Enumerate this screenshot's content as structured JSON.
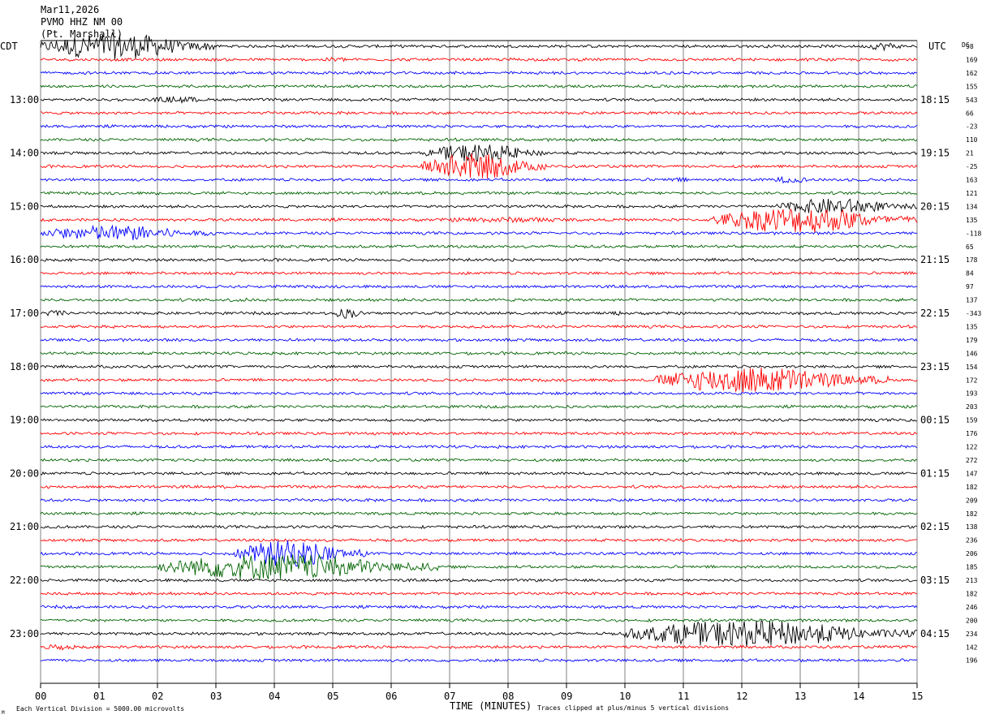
{
  "header": {
    "date": "Mar11,2026",
    "station": "PVMO HHZ NM 00",
    "location": "(Pt. Marshall)"
  },
  "labels": {
    "left_tz": "CDT",
    "right_tz": "UTC",
    "dc_label": "DC",
    "x_axis_title": "TIME (MINUTES)",
    "scale_note": "Each Vertical Division = 5000.00 microvolts",
    "clip_note": "Traces clipped at plus/minus 5 vertical divisions",
    "corner_mark": "M"
  },
  "colors": {
    "cycle": [
      "#000000",
      "#ff0000",
      "#0000ff",
      "#006400"
    ],
    "grid": "#808080",
    "background": "#ffffff"
  },
  "chart_data": {
    "type": "line",
    "subtype": "helicorder",
    "x_label": "TIME (MINUTES)",
    "x_range": [
      0,
      15
    ],
    "x_ticks": [
      "00",
      "01",
      "02",
      "03",
      "04",
      "05",
      "06",
      "07",
      "08",
      "09",
      "10",
      "11",
      "12",
      "13",
      "14",
      "15"
    ],
    "trace_minutes": 15,
    "color_cycle": [
      "black",
      "red",
      "blue",
      "green"
    ],
    "left_hour_labels": [
      "13:00",
      "14:00",
      "15:00",
      "16:00",
      "17:00",
      "18:00",
      "19:00",
      "20:00",
      "21:00",
      "22:00",
      "23:00"
    ],
    "right_hour_labels": [
      "18:15",
      "19:15",
      "20:15",
      "21:15",
      "22:15",
      "23:15",
      "00:15",
      "01:15",
      "02:15",
      "03:15",
      "04:15"
    ],
    "dc_offsets": [
      98,
      169,
      162,
      155,
      543,
      66,
      -23,
      110,
      21,
      -25,
      163,
      121,
      134,
      135,
      -118,
      65,
      178,
      84,
      97,
      137,
      -343,
      135,
      179,
      146,
      154,
      172,
      193,
      203,
      159,
      176,
      122,
      272,
      147,
      182,
      209,
      182,
      138,
      236,
      206,
      185,
      213,
      182,
      246,
      200,
      234,
      142,
      196
    ],
    "trace_count": 47,
    "events": [
      {
        "trace": 0,
        "start_min": 0.0,
        "end_min": 3.0,
        "amplitude_div": 5.0
      },
      {
        "trace": 0,
        "start_min": 14.1,
        "end_min": 14.9,
        "amplitude_div": 1.5
      },
      {
        "trace": 1,
        "start_min": 4.8,
        "end_min": 5.4,
        "amplitude_div": 1.0
      },
      {
        "trace": 1,
        "start_min": 7.8,
        "end_min": 8.5,
        "amplitude_div": 0.7
      },
      {
        "trace": 4,
        "start_min": 1.8,
        "end_min": 3.1,
        "amplitude_div": 1.2
      },
      {
        "trace": 8,
        "start_min": 6.6,
        "end_min": 8.7,
        "amplitude_div": 3.5
      },
      {
        "trace": 9,
        "start_min": 6.5,
        "end_min": 8.7,
        "amplitude_div": 5.0
      },
      {
        "trace": 10,
        "start_min": 10.6,
        "end_min": 11.4,
        "amplitude_div": 0.8
      },
      {
        "trace": 10,
        "start_min": 12.4,
        "end_min": 13.4,
        "amplitude_div": 1.2
      },
      {
        "trace": 12,
        "start_min": 12.6,
        "end_min": 15.0,
        "amplitude_div": 3.0
      },
      {
        "trace": 13,
        "start_min": 6.5,
        "end_min": 10.0,
        "amplitude_div": 1.0
      },
      {
        "trace": 13,
        "start_min": 11.5,
        "end_min": 15.0,
        "amplitude_div": 5.0
      },
      {
        "trace": 14,
        "start_min": 0.0,
        "end_min": 3.0,
        "amplitude_div": 3.0
      },
      {
        "trace": 19,
        "start_min": 3.1,
        "end_min": 3.8,
        "amplitude_div": 0.8
      },
      {
        "trace": 20,
        "start_min": 0.0,
        "end_min": 0.6,
        "amplitude_div": 1.2
      },
      {
        "trace": 20,
        "start_min": 5.0,
        "end_min": 5.6,
        "amplitude_div": 2.0
      },
      {
        "trace": 20,
        "start_min": 9.7,
        "end_min": 10.1,
        "amplitude_div": 0.8
      },
      {
        "trace": 25,
        "start_min": 10.5,
        "end_min": 14.5,
        "amplitude_div": 5.0
      },
      {
        "trace": 38,
        "start_min": 3.3,
        "end_min": 5.6,
        "amplitude_div": 5.0
      },
      {
        "trace": 39,
        "start_min": 2.0,
        "end_min": 6.8,
        "amplitude_div": 5.0
      },
      {
        "trace": 44,
        "start_min": 10.0,
        "end_min": 15.0,
        "amplitude_div": 5.0
      },
      {
        "trace": 45,
        "start_min": 0.0,
        "end_min": 0.8,
        "amplitude_div": 1.2
      }
    ]
  }
}
